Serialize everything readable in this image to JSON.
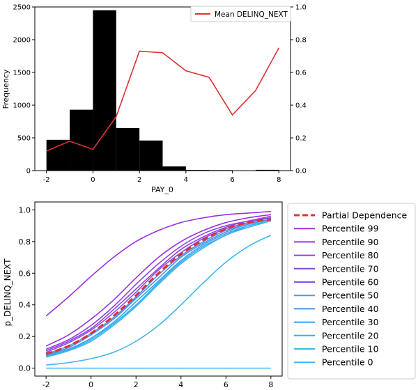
{
  "chart_data": [
    {
      "type": "bar",
      "xlabel": "PAY_0",
      "ylabel": "Frequency",
      "xlim": [
        -2.5,
        8.5
      ],
      "ylim": [
        0,
        2500
      ],
      "y2lim": [
        0,
        1.0
      ],
      "x_ticks": [
        "-2",
        "0",
        "2",
        "4",
        "6",
        "8"
      ],
      "y_ticks": [
        "0",
        "500",
        "1000",
        "1500",
        "2000",
        "2500"
      ],
      "y2_ticks": [
        "0.0",
        "0.2",
        "0.4",
        "0.6",
        "0.8",
        "1.0"
      ],
      "histogram": {
        "bins": [
          [
            -2,
            -1
          ],
          [
            -1,
            0
          ],
          [
            0,
            1
          ],
          [
            1,
            2
          ],
          [
            2,
            3
          ],
          [
            3,
            4
          ],
          [
            4,
            5
          ],
          [
            5,
            6
          ],
          [
            6,
            7
          ],
          [
            7,
            8
          ]
        ],
        "values": [
          470,
          930,
          2450,
          650,
          460,
          65,
          10,
          8,
          2,
          12
        ],
        "color": "#000000"
      },
      "line": {
        "name": "Mean DELINQ_NEXT",
        "color": "#e03131",
        "x": [
          -2,
          -1,
          0,
          1,
          2,
          3,
          4,
          5,
          6,
          7,
          8
        ],
        "values": [
          0.12,
          0.18,
          0.13,
          0.33,
          0.73,
          0.72,
          0.61,
          0.57,
          0.34,
          0.49,
          0.75
        ]
      },
      "legend_position": "top-right"
    },
    {
      "type": "line",
      "xlabel": "",
      "ylabel": "p_DELINQ_NEXT",
      "xlim": [
        -2.5,
        8.5
      ],
      "ylim": [
        -0.05,
        1.05
      ],
      "x_ticks": [
        "-2",
        "0",
        "2",
        "4",
        "6",
        "8"
      ],
      "y_ticks": [
        "0.0",
        "0.2",
        "0.4",
        "0.6",
        "0.8",
        "1.0"
      ],
      "x": [
        -2,
        -1,
        0,
        1,
        2,
        3,
        4,
        5,
        6,
        7,
        8
      ],
      "series": [
        {
          "name": "Partial Dependence",
          "color": "#e03131",
          "dashed": true,
          "values": [
            0.09,
            0.14,
            0.22,
            0.33,
            0.46,
            0.6,
            0.72,
            0.81,
            0.88,
            0.92,
            0.94
          ]
        },
        {
          "name": "Percentile 99",
          "color": "#9b30e0",
          "values": [
            0.33,
            0.45,
            0.58,
            0.7,
            0.8,
            0.87,
            0.92,
            0.95,
            0.97,
            0.98,
            0.99
          ]
        },
        {
          "name": "Percentile 90",
          "color": "#9b30e0",
          "values": [
            0.14,
            0.21,
            0.31,
            0.43,
            0.57,
            0.7,
            0.8,
            0.87,
            0.92,
            0.95,
            0.97
          ]
        },
        {
          "name": "Percentile 80",
          "color": "#8e44e0",
          "values": [
            0.12,
            0.18,
            0.27,
            0.39,
            0.53,
            0.66,
            0.77,
            0.85,
            0.9,
            0.93,
            0.96
          ]
        },
        {
          "name": "Percentile 70",
          "color": "#8e44e0",
          "values": [
            0.11,
            0.17,
            0.25,
            0.37,
            0.5,
            0.63,
            0.75,
            0.83,
            0.89,
            0.93,
            0.95
          ]
        },
        {
          "name": "Percentile 60",
          "color": "#8a4fe4",
          "values": [
            0.1,
            0.16,
            0.24,
            0.35,
            0.48,
            0.62,
            0.73,
            0.82,
            0.88,
            0.92,
            0.95
          ]
        },
        {
          "name": "Percentile 50",
          "color": "#5b8def",
          "values": [
            0.09,
            0.14,
            0.22,
            0.32,
            0.45,
            0.59,
            0.71,
            0.8,
            0.87,
            0.91,
            0.94
          ]
        },
        {
          "name": "Percentile 40",
          "color": "#4a90e8",
          "values": [
            0.085,
            0.13,
            0.21,
            0.31,
            0.44,
            0.57,
            0.7,
            0.79,
            0.86,
            0.91,
            0.94
          ]
        },
        {
          "name": "Percentile 30",
          "color": "#3aa0ea",
          "values": [
            0.08,
            0.12,
            0.19,
            0.29,
            0.42,
            0.55,
            0.68,
            0.78,
            0.85,
            0.9,
            0.93
          ]
        },
        {
          "name": "Percentile 20",
          "color": "#33aef0",
          "values": [
            0.075,
            0.115,
            0.18,
            0.28,
            0.4,
            0.54,
            0.67,
            0.77,
            0.84,
            0.9,
            0.93
          ]
        },
        {
          "name": "Percentile 10",
          "color": "#3ab4f0",
          "values": [
            0.07,
            0.11,
            0.17,
            0.27,
            0.39,
            0.53,
            0.66,
            0.76,
            0.84,
            0.89,
            0.93
          ]
        },
        {
          "name": "Percentile 0",
          "color": "#3cb8f2",
          "values": [
            0.02,
            0.035,
            0.06,
            0.1,
            0.17,
            0.27,
            0.4,
            0.54,
            0.67,
            0.77,
            0.84
          ]
        },
        {
          "name": "",
          "color": "#3cb8f2",
          "values": [
            0.0,
            0.0,
            0.0,
            0.0,
            0.0,
            0.0,
            0.0,
            0.0,
            0.0,
            0.0,
            0.0
          ]
        }
      ],
      "legend_position": "outside-right"
    }
  ]
}
